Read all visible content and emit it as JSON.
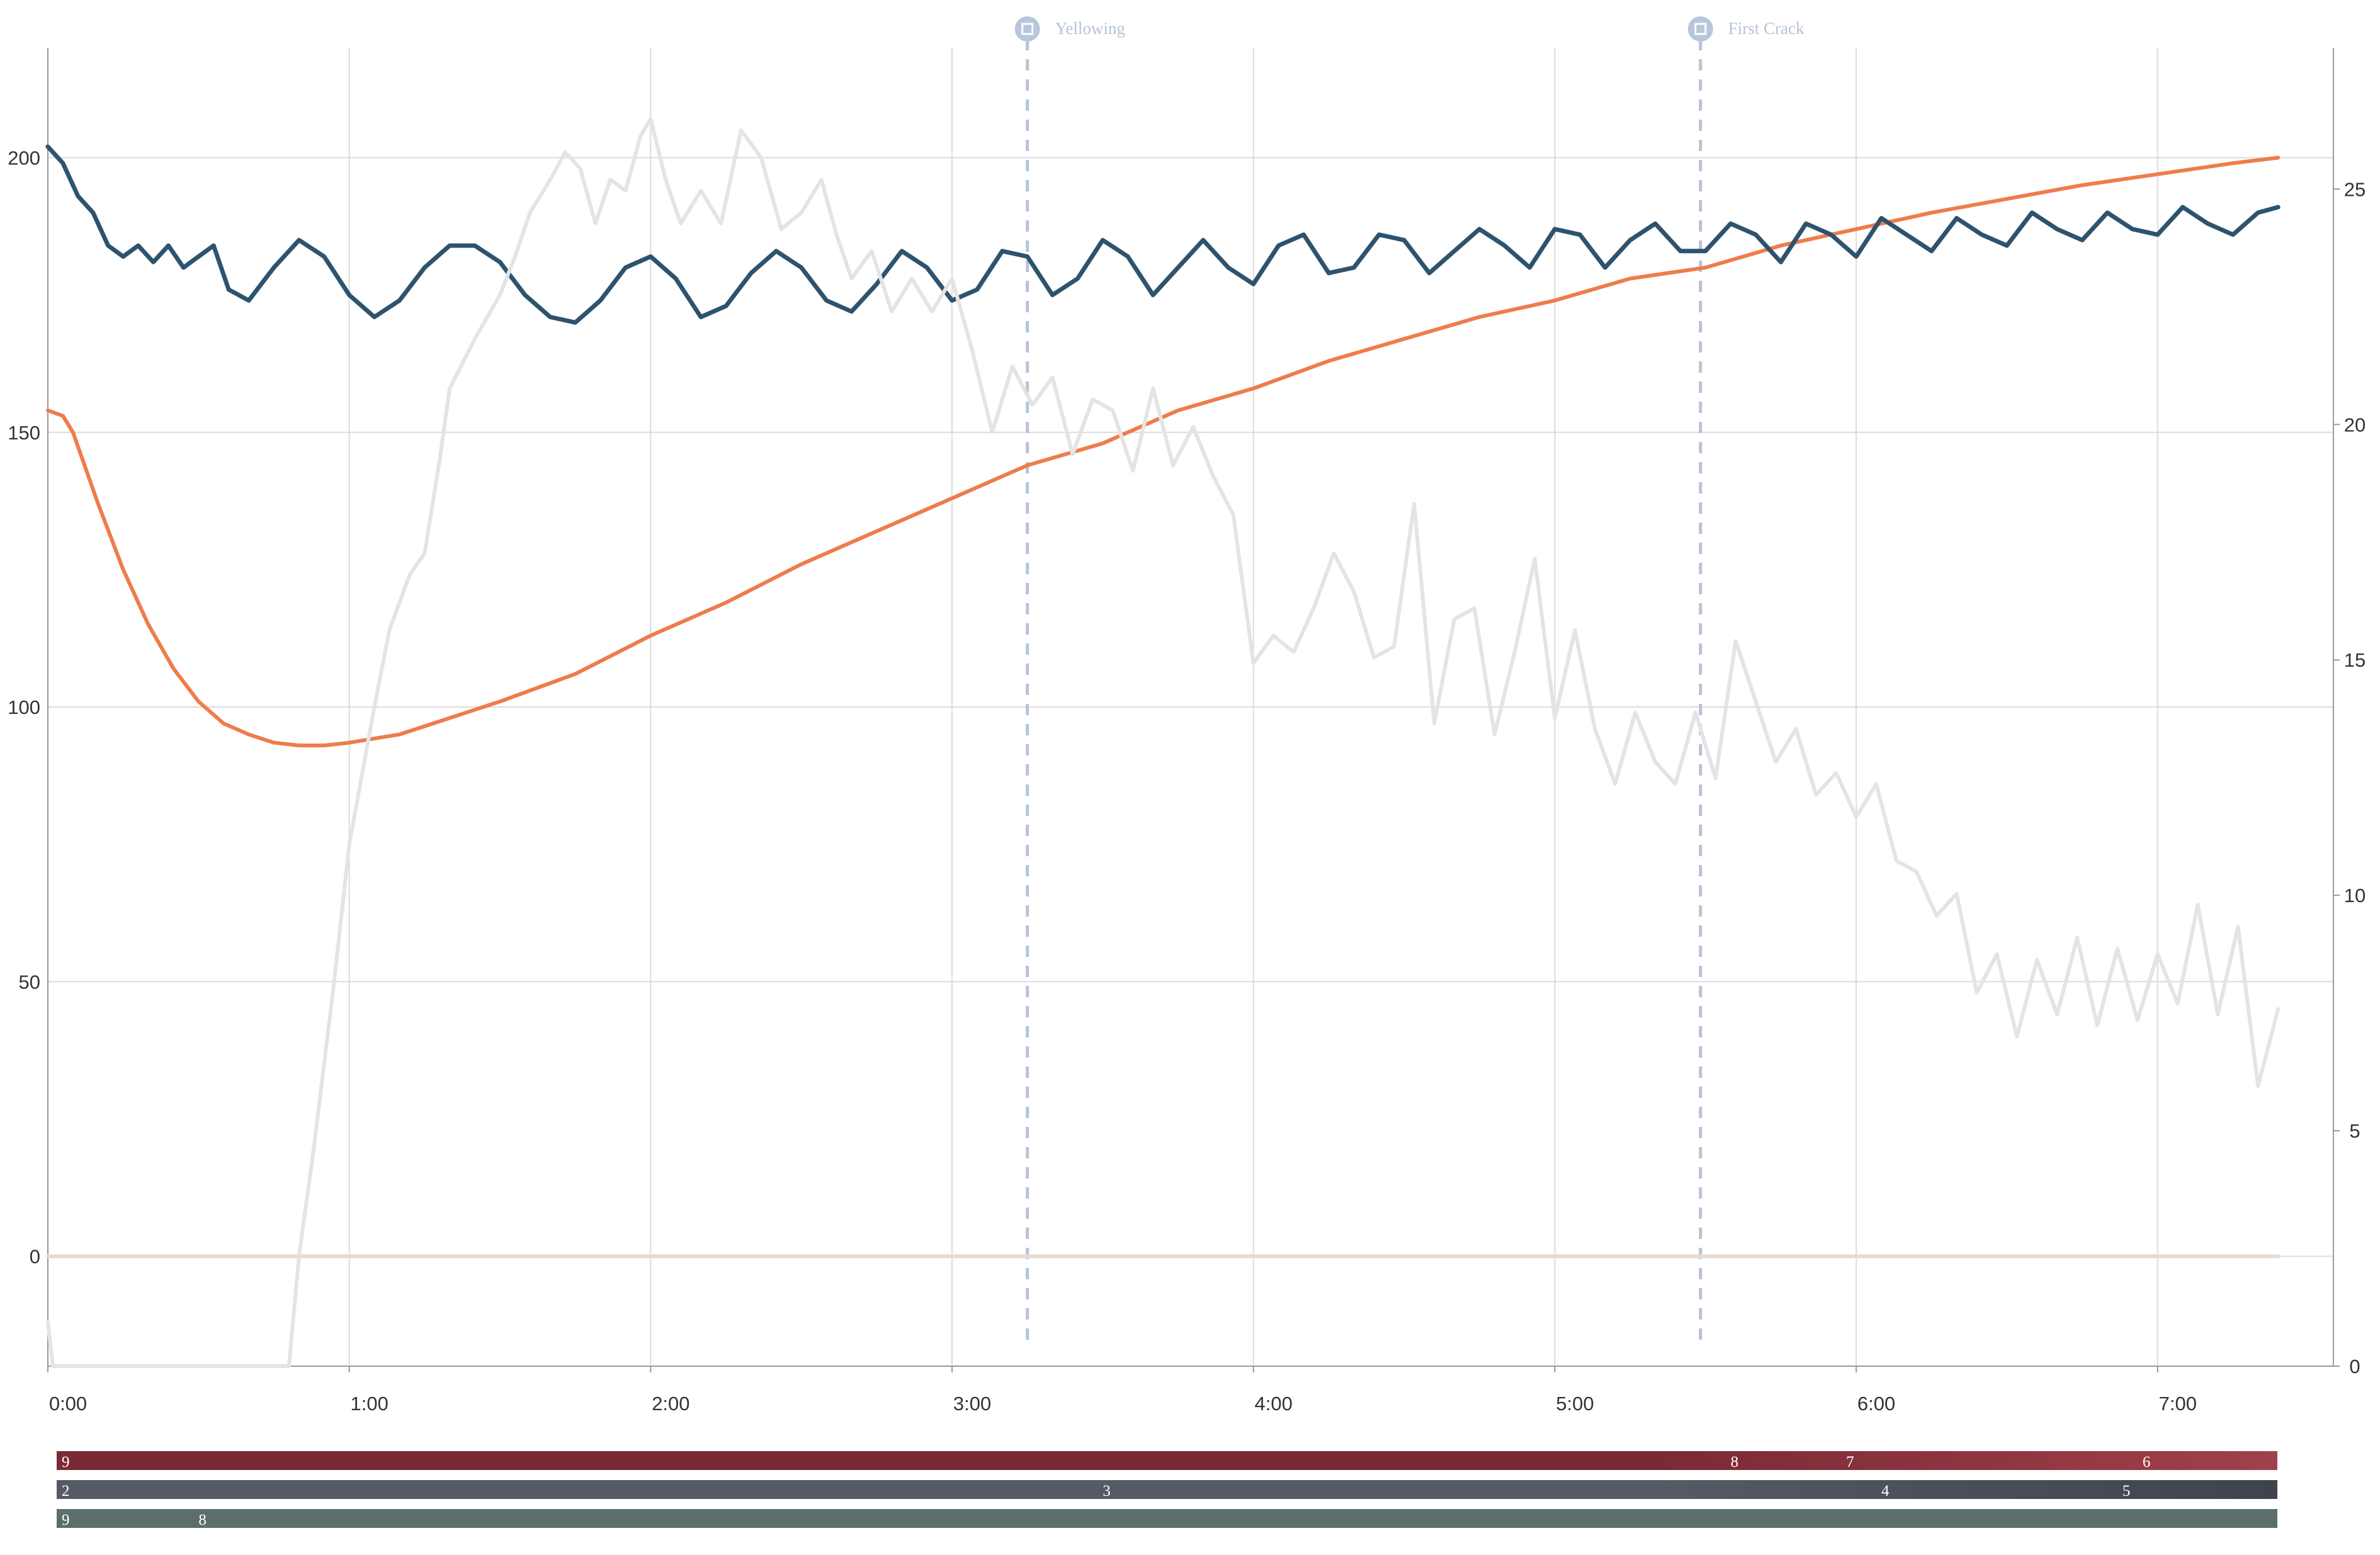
{
  "chart_data": {
    "type": "line",
    "x_unit": "time (m:ss)",
    "x_ticks": [
      "0:00",
      "1:00",
      "2:00",
      "3:00",
      "4:00",
      "5:00",
      "6:00",
      "7:00"
    ],
    "xlim": [
      "0:00",
      "7:35"
    ],
    "y_left_ticks": [
      0,
      50,
      100,
      150,
      200
    ],
    "y_left_range": [
      -20,
      220
    ],
    "y_right_ticks": [
      0,
      5,
      10,
      15,
      20,
      25
    ],
    "y_right_range": [
      0,
      28
    ],
    "grid": true,
    "legend": "none",
    "markers": [
      {
        "label": "Yellowing",
        "time": "3:15"
      },
      {
        "label": "First Crack",
        "time": "5:29"
      }
    ],
    "series": [
      {
        "color": "#ee7c4c",
        "axis": "left",
        "points": [
          [
            "0:00",
            154
          ],
          [
            "0:03",
            153
          ],
          [
            "0:05",
            150
          ],
          [
            "0:10",
            137
          ],
          [
            "0:15",
            125
          ],
          [
            "0:20",
            115
          ],
          [
            "0:25",
            107
          ],
          [
            "0:30",
            101
          ],
          [
            "0:35",
            97
          ],
          [
            "0:40",
            95
          ],
          [
            "0:45",
            93.5
          ],
          [
            "0:50",
            93
          ],
          [
            "0:55",
            93
          ],
          [
            "1:00",
            93.5
          ],
          [
            "1:10",
            95
          ],
          [
            "1:20",
            98
          ],
          [
            "1:30",
            101
          ],
          [
            "1:45",
            106
          ],
          [
            "2:00",
            113
          ],
          [
            "2:15",
            119
          ],
          [
            "2:30",
            126
          ],
          [
            "2:45",
            132
          ],
          [
            "3:00",
            138
          ],
          [
            "3:15",
            144
          ],
          [
            "3:30",
            148
          ],
          [
            "3:45",
            154
          ],
          [
            "4:00",
            158
          ],
          [
            "4:15",
            163
          ],
          [
            "4:30",
            167
          ],
          [
            "4:45",
            171
          ],
          [
            "5:00",
            174
          ],
          [
            "5:15",
            178
          ],
          [
            "5:30",
            180
          ],
          [
            "5:45",
            184
          ],
          [
            "6:00",
            187
          ],
          [
            "6:15",
            190
          ],
          [
            "6:30",
            192.5
          ],
          [
            "6:45",
            195
          ],
          [
            "7:00",
            197
          ],
          [
            "7:15",
            199
          ],
          [
            "7:24",
            200
          ]
        ]
      },
      {
        "color": "#2d536e",
        "axis": "left",
        "points": [
          [
            "0:00",
            202
          ],
          [
            "0:03",
            199
          ],
          [
            "0:06",
            193
          ],
          [
            "0:09",
            190
          ],
          [
            "0:12",
            184
          ],
          [
            "0:15",
            182
          ],
          [
            "0:18",
            184
          ],
          [
            "0:21",
            181
          ],
          [
            "0:24",
            184
          ],
          [
            "0:27",
            180
          ],
          [
            "0:30",
            182
          ],
          [
            "0:33",
            184
          ],
          [
            "0:36",
            176
          ],
          [
            "0:40",
            174
          ],
          [
            "0:45",
            180
          ],
          [
            "0:50",
            185
          ],
          [
            "0:55",
            182
          ],
          [
            "1:00",
            175
          ],
          [
            "1:05",
            171
          ],
          [
            "1:10",
            174
          ],
          [
            "1:15",
            180
          ],
          [
            "1:20",
            184
          ],
          [
            "1:25",
            184
          ],
          [
            "1:30",
            181
          ],
          [
            "1:35",
            175
          ],
          [
            "1:40",
            171
          ],
          [
            "1:45",
            170
          ],
          [
            "1:50",
            174
          ],
          [
            "1:55",
            180
          ],
          [
            "2:00",
            182
          ],
          [
            "2:05",
            178
          ],
          [
            "2:10",
            171
          ],
          [
            "2:15",
            173
          ],
          [
            "2:20",
            179
          ],
          [
            "2:25",
            183
          ],
          [
            "2:30",
            180
          ],
          [
            "2:35",
            174
          ],
          [
            "2:40",
            172
          ],
          [
            "2:45",
            177
          ],
          [
            "2:50",
            183
          ],
          [
            "2:55",
            180
          ],
          [
            "3:00",
            174
          ],
          [
            "3:05",
            176
          ],
          [
            "3:10",
            183
          ],
          [
            "3:15",
            182
          ],
          [
            "3:20",
            175
          ],
          [
            "3:25",
            178
          ],
          [
            "3:30",
            185
          ],
          [
            "3:35",
            182
          ],
          [
            "3:40",
            175
          ],
          [
            "3:45",
            180
          ],
          [
            "3:50",
            185
          ],
          [
            "3:55",
            180
          ],
          [
            "4:00",
            177
          ],
          [
            "4:05",
            184
          ],
          [
            "4:10",
            186
          ],
          [
            "4:15",
            179
          ],
          [
            "4:20",
            180
          ],
          [
            "4:25",
            186
          ],
          [
            "4:30",
            185
          ],
          [
            "4:35",
            179
          ],
          [
            "4:40",
            183
          ],
          [
            "4:45",
            187
          ],
          [
            "4:50",
            184
          ],
          [
            "4:55",
            180
          ],
          [
            "5:00",
            187
          ],
          [
            "5:05",
            186
          ],
          [
            "5:10",
            180
          ],
          [
            "5:15",
            185
          ],
          [
            "5:20",
            188
          ],
          [
            "5:25",
            183
          ],
          [
            "5:30",
            183
          ],
          [
            "5:35",
            188
          ],
          [
            "5:40",
            186
          ],
          [
            "5:45",
            181
          ],
          [
            "5:50",
            188
          ],
          [
            "5:55",
            186
          ],
          [
            "6:00",
            182
          ],
          [
            "6:05",
            189
          ],
          [
            "6:10",
            186
          ],
          [
            "6:15",
            183
          ],
          [
            "6:20",
            189
          ],
          [
            "6:25",
            186
          ],
          [
            "6:30",
            184
          ],
          [
            "6:35",
            190
          ],
          [
            "6:40",
            187
          ],
          [
            "6:45",
            185
          ],
          [
            "6:50",
            190
          ],
          [
            "6:55",
            187
          ],
          [
            "7:00",
            186
          ],
          [
            "7:05",
            191
          ],
          [
            "7:10",
            188
          ],
          [
            "7:15",
            186
          ],
          [
            "7:20",
            190
          ],
          [
            "7:24",
            191
          ]
        ]
      },
      {
        "color": "#e4e4e4",
        "axis": "left",
        "points": [
          [
            "0:00",
            -12
          ],
          [
            "0:01",
            -20
          ],
          [
            "0:48",
            -20
          ],
          [
            "0:50",
            0
          ],
          [
            "0:53",
            20
          ],
          [
            "0:57",
            50
          ],
          [
            "1:00",
            75
          ],
          [
            "1:05",
            100
          ],
          [
            "1:08",
            114
          ],
          [
            "1:12",
            124
          ],
          [
            "1:15",
            128
          ],
          [
            "1:18",
            145
          ],
          [
            "1:20",
            158
          ],
          [
            "1:25",
            167
          ],
          [
            "1:30",
            175
          ],
          [
            "1:33",
            182
          ],
          [
            "1:36",
            190
          ],
          [
            "1:40",
            196
          ],
          [
            "1:43",
            201
          ],
          [
            "1:46",
            198
          ],
          [
            "1:49",
            188
          ],
          [
            "1:52",
            196
          ],
          [
            "1:55",
            194
          ],
          [
            "1:58",
            204
          ],
          [
            "2:00",
            207
          ],
          [
            "2:03",
            196
          ],
          [
            "2:06",
            188
          ],
          [
            "2:10",
            194
          ],
          [
            "2:14",
            188
          ],
          [
            "2:18",
            205
          ],
          [
            "2:22",
            200
          ],
          [
            "2:26",
            187
          ],
          [
            "2:30",
            190
          ],
          [
            "2:34",
            196
          ],
          [
            "2:37",
            186
          ],
          [
            "2:40",
            178
          ],
          [
            "2:44",
            183
          ],
          [
            "2:48",
            172
          ],
          [
            "2:52",
            178
          ],
          [
            "2:56",
            172
          ],
          [
            "3:00",
            178
          ],
          [
            "3:04",
            165
          ],
          [
            "3:08",
            150
          ],
          [
            "3:12",
            162
          ],
          [
            "3:16",
            155
          ],
          [
            "3:20",
            160
          ],
          [
            "3:24",
            146
          ],
          [
            "3:28",
            156
          ],
          [
            "3:32",
            154
          ],
          [
            "3:36",
            143
          ],
          [
            "3:40",
            158
          ],
          [
            "3:44",
            144
          ],
          [
            "3:48",
            151
          ],
          [
            "3:52",
            142
          ],
          [
            "3:56",
            135
          ],
          [
            "4:00",
            108
          ],
          [
            "4:04",
            113
          ],
          [
            "4:08",
            110
          ],
          [
            "4:12",
            118
          ],
          [
            "4:16",
            128
          ],
          [
            "4:20",
            121
          ],
          [
            "4:24",
            109
          ],
          [
            "4:28",
            111
          ],
          [
            "4:32",
            137
          ],
          [
            "4:36",
            97
          ],
          [
            "4:40",
            116
          ],
          [
            "4:44",
            118
          ],
          [
            "4:48",
            95
          ],
          [
            "4:52",
            110
          ],
          [
            "4:56",
            127
          ],
          [
            "5:00",
            98
          ],
          [
            "5:04",
            114
          ],
          [
            "5:08",
            96
          ],
          [
            "5:12",
            86
          ],
          [
            "5:16",
            99
          ],
          [
            "5:20",
            90
          ],
          [
            "5:24",
            86
          ],
          [
            "5:28",
            99
          ],
          [
            "5:32",
            87
          ],
          [
            "5:36",
            112
          ],
          [
            "5:40",
            101
          ],
          [
            "5:44",
            90
          ],
          [
            "5:48",
            96
          ],
          [
            "5:52",
            84
          ],
          [
            "5:56",
            88
          ],
          [
            "6:00",
            80
          ],
          [
            "6:04",
            86
          ],
          [
            "6:08",
            72
          ],
          [
            "6:12",
            70
          ],
          [
            "6:16",
            62
          ],
          [
            "6:20",
            66
          ],
          [
            "6:24",
            48
          ],
          [
            "6:28",
            55
          ],
          [
            "6:32",
            40
          ],
          [
            "6:36",
            54
          ],
          [
            "6:40",
            44
          ],
          [
            "6:44",
            58
          ],
          [
            "6:48",
            42
          ],
          [
            "6:52",
            56
          ],
          [
            "6:56",
            43
          ],
          [
            "7:00",
            55
          ],
          [
            "7:04",
            46
          ],
          [
            "7:08",
            64
          ],
          [
            "7:12",
            44
          ],
          [
            "7:16",
            60
          ],
          [
            "7:20",
            31
          ],
          [
            "7:24",
            45
          ]
        ]
      },
      {
        "color": "#e6dccd",
        "axis": "left",
        "points": [
          [
            "0:00",
            0
          ],
          [
            "7:24",
            0
          ]
        ]
      }
    ],
    "bands": [
      {
        "color": "#7a2a35",
        "color_end": "#a1404c",
        "labels": [
          {
            "time": "0:00",
            "text": "9"
          },
          {
            "time": "5:35",
            "text": "8"
          },
          {
            "time": "5:58",
            "text": "7"
          },
          {
            "time": "6:57",
            "text": "6"
          }
        ]
      },
      {
        "color": "#565a66",
        "color_end": "#3f434c",
        "labels": [
          {
            "time": "0:00",
            "text": "2"
          },
          {
            "time": "3:30",
            "text": "3"
          },
          {
            "time": "6:05",
            "text": "4"
          },
          {
            "time": "6:53",
            "text": "5"
          }
        ]
      },
      {
        "color": "#5c6e6c",
        "color_end": "#5c6e6c",
        "labels": [
          {
            "time": "0:00",
            "text": "9"
          },
          {
            "time": "0:30",
            "text": "8"
          }
        ]
      }
    ]
  }
}
